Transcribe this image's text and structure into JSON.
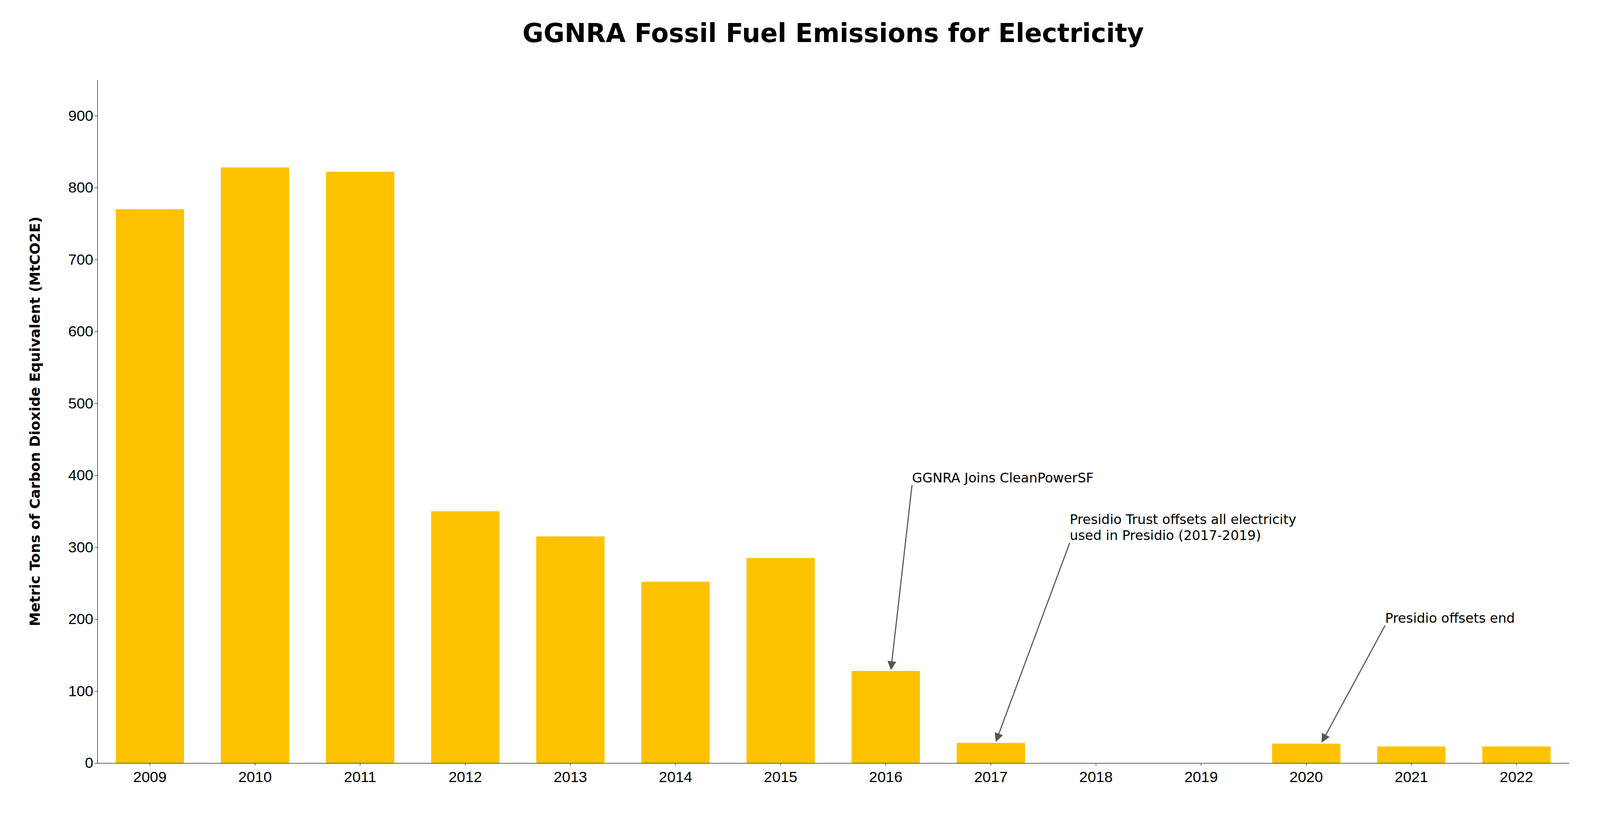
{
  "chart_data": {
    "type": "bar",
    "title": "GGNRA Fossil Fuel Emissions for Electricity",
    "ylabel": "Metric Tons of Carbon Dioxide Equivalent (MtCO2E)",
    "categories": [
      "2009",
      "2010",
      "2011",
      "2012",
      "2013",
      "2014",
      "2015",
      "2016",
      "2017",
      "2018",
      "2019",
      "2020",
      "2021",
      "2022"
    ],
    "values": [
      770,
      828,
      822,
      350,
      315,
      252,
      285,
      128,
      28,
      0,
      0,
      27,
      23,
      23
    ],
    "color": "#FFC200",
    "ylim": [
      0,
      950
    ],
    "yticks": [
      0,
      100,
      200,
      300,
      400,
      500,
      600,
      700,
      800,
      900
    ],
    "grid": false,
    "annotations": [
      "GGNRA Joins CleanPowerSF",
      "Presidio Trust offsets all electricity\nused in Presidio (2017-2019)",
      "Presidio offsets end"
    ]
  }
}
